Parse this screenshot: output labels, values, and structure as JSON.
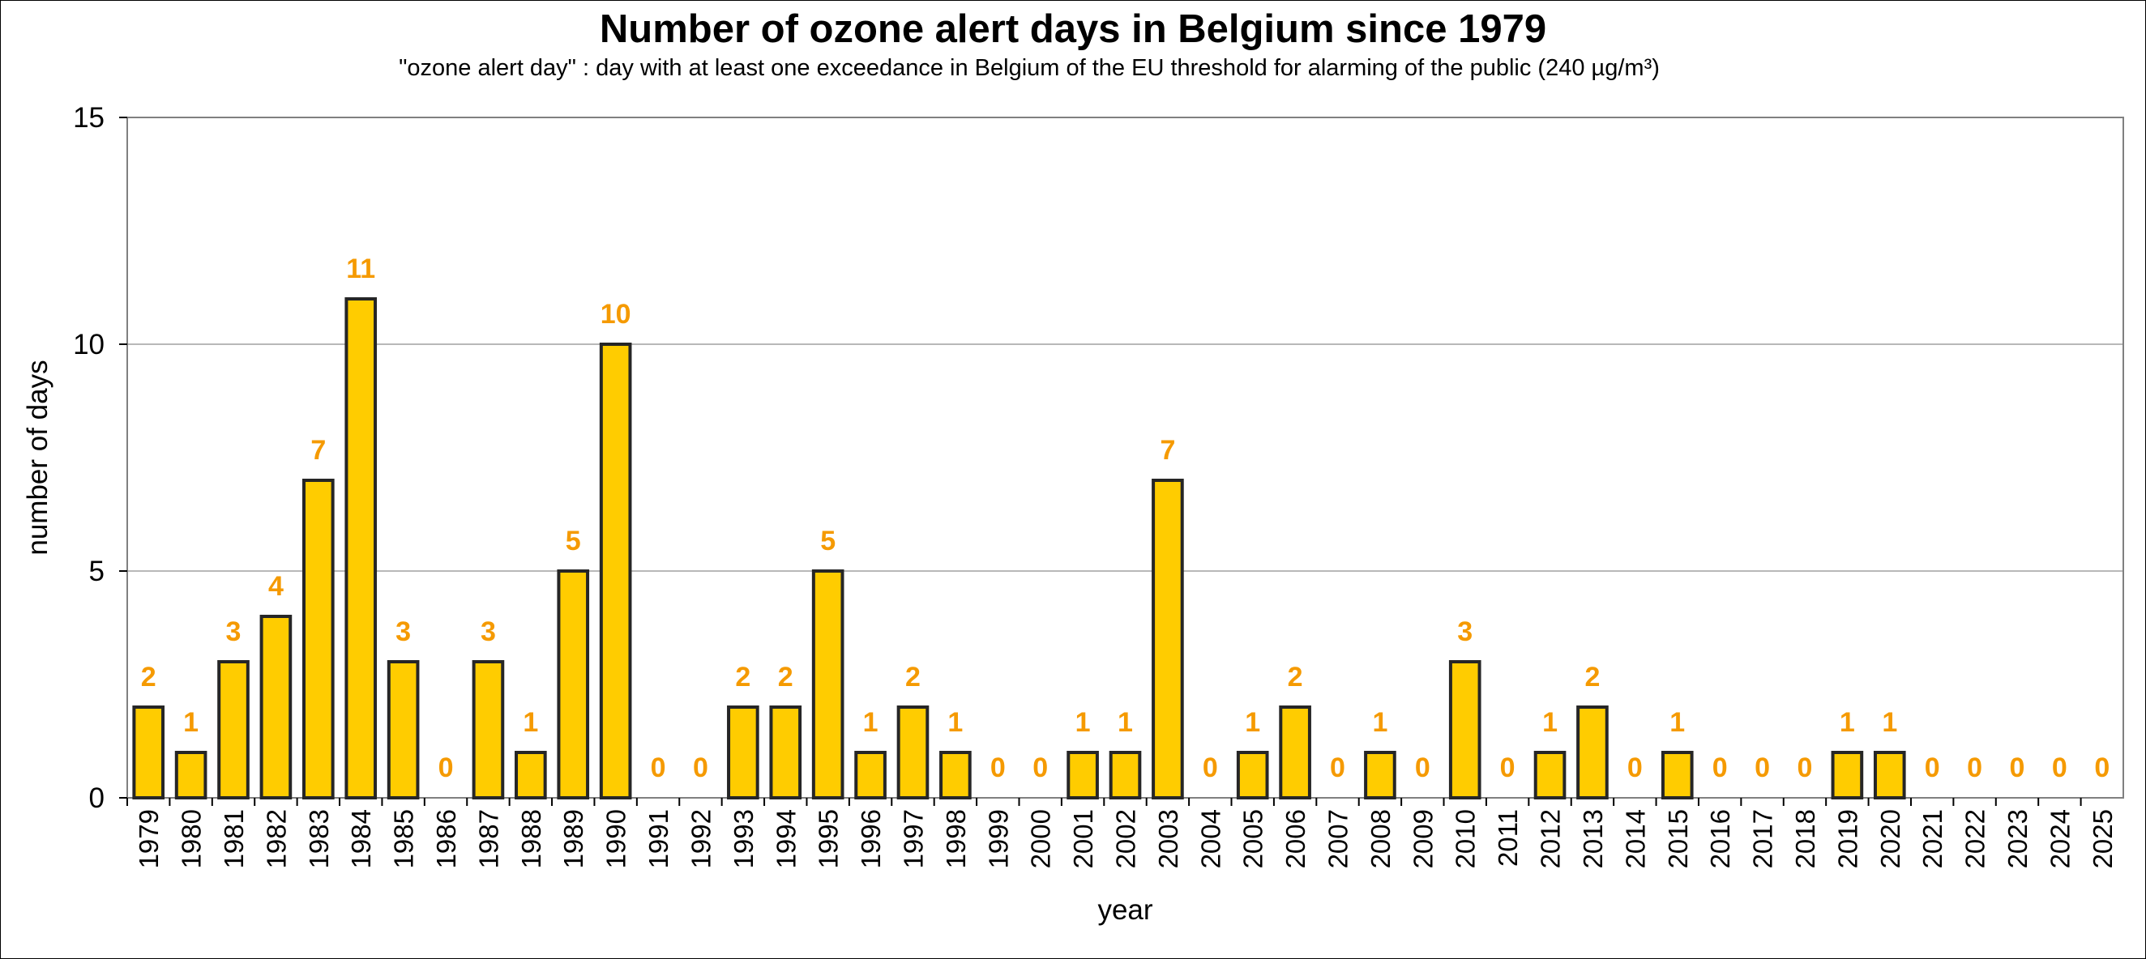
{
  "chart_data": {
    "type": "bar",
    "title": "Number of ozone alert days in Belgium since 1979",
    "subtitle": "\"ozone alert day\" : day with at least one exceedance in Belgium of the EU threshold for alarming of the  public (240 µg/m³)",
    "xlabel": "year",
    "ylabel": "number of days",
    "ylim": [
      0,
      15
    ],
    "yticks": [
      "0",
      "5",
      "10",
      "15"
    ],
    "grid": "horizontal",
    "categories": [
      "1979",
      "1980",
      "1981",
      "1982",
      "1983",
      "1984",
      "1985",
      "1986",
      "1987",
      "1988",
      "1989",
      "1990",
      "1991",
      "1992",
      "1993",
      "1994",
      "1995",
      "1996",
      "1997",
      "1998",
      "1999",
      "2000",
      "2001",
      "2002",
      "2003",
      "2004",
      "2005",
      "2006",
      "2007",
      "2008",
      "2009",
      "2010",
      "2011",
      "2012",
      "2013",
      "2014",
      "2015",
      "2016",
      "2017",
      "2018",
      "2019",
      "2020",
      "2021",
      "2022",
      "2023",
      "2024",
      "2025"
    ],
    "values": [
      2,
      1,
      3,
      4,
      7,
      11,
      3,
      0,
      3,
      1,
      5,
      10,
      0,
      0,
      2,
      2,
      5,
      1,
      2,
      1,
      0,
      0,
      1,
      1,
      7,
      0,
      1,
      2,
      0,
      1,
      0,
      3,
      0,
      1,
      2,
      0,
      1,
      0,
      0,
      0,
      1,
      1,
      0,
      0,
      0,
      0,
      0
    ],
    "colors": {
      "bar_fill": "#FFCC00",
      "bar_stroke": "#262626",
      "data_label": "#F59A00",
      "grid": "#A0A0A0"
    }
  }
}
